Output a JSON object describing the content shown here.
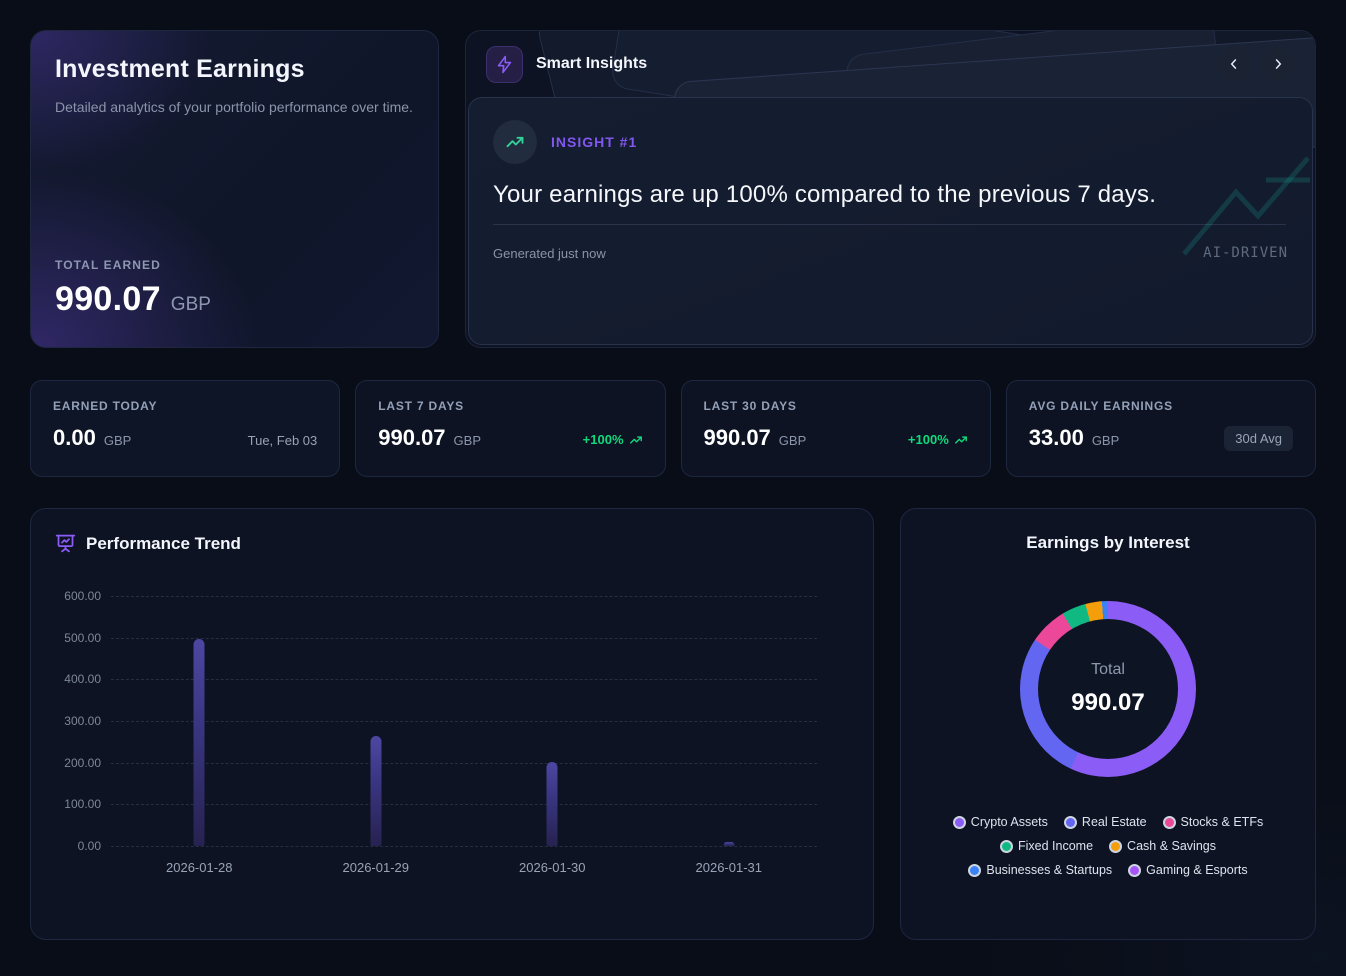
{
  "hero": {
    "title": "Investment Earnings",
    "subtitle": "Detailed analytics of your portfolio performance over time.",
    "total_label": "TOTAL EARNED",
    "total_value": "990.07",
    "currency": "GBP"
  },
  "insights": {
    "title": "Smart Insights",
    "badge": "INSIGHT #1",
    "headline": "Your earnings are up 100% compared to the previous 7 days.",
    "generated": "Generated just now",
    "watermark": "AI-DRIVEN"
  },
  "stats": [
    {
      "label": "EARNED TODAY",
      "value": "0.00",
      "currency": "GBP",
      "meta_type": "date",
      "meta": "Tue, Feb 03"
    },
    {
      "label": "LAST 7 DAYS",
      "value": "990.07",
      "currency": "GBP",
      "meta_type": "trend",
      "meta": "+100%"
    },
    {
      "label": "LAST 30 DAYS",
      "value": "990.07",
      "currency": "GBP",
      "meta_type": "trend",
      "meta": "+100%"
    },
    {
      "label": "AVG DAILY EARNINGS",
      "value": "33.00",
      "currency": "GBP",
      "meta_type": "badge",
      "meta": "30d Avg"
    }
  ],
  "colors": {
    "accent_purple": "#8b5cf6",
    "trend_green": "#10d97d",
    "insight_icon_green": "#34d399",
    "watermark_teal": "#14b8a6"
  },
  "chart_data": [
    {
      "type": "bar",
      "title": "Performance Trend",
      "categories": [
        "2026-01-28",
        "2026-01-29",
        "2026-01-30",
        "2026-01-31"
      ],
      "values": [
        497,
        264,
        201,
        10
      ],
      "xlabel": "",
      "ylabel": "",
      "ylim": [
        0,
        600
      ],
      "yticks": [
        "600.00",
        "500.00",
        "400.00",
        "300.00",
        "200.00",
        "100.00",
        "0.00"
      ],
      "grid": "horizontal-dashed",
      "bar_color": "#46409a",
      "legend_position": "none"
    },
    {
      "type": "pie",
      "title": "Earnings by Interest",
      "center_label": "Total",
      "center_value": "990.07",
      "segments": [
        {
          "label": "Crypto Assets",
          "value": 564,
          "color": "#8b5cf6"
        },
        {
          "label": "Real Estate",
          "value": 272,
          "color": "#6366f1"
        },
        {
          "label": "Stocks & ETFs",
          "value": 69,
          "color": "#ec4899"
        },
        {
          "label": "Fixed Income",
          "value": 44,
          "color": "#10b981"
        },
        {
          "label": "Cash & Savings",
          "value": 30,
          "color": "#f59e0b"
        },
        {
          "label": "Businesses & Startups",
          "value": 11,
          "color": "#3b82f6"
        },
        {
          "label": "Gaming & Esports",
          "value": 0,
          "color": "#a855f7"
        }
      ],
      "legend_position": "bottom"
    }
  ]
}
